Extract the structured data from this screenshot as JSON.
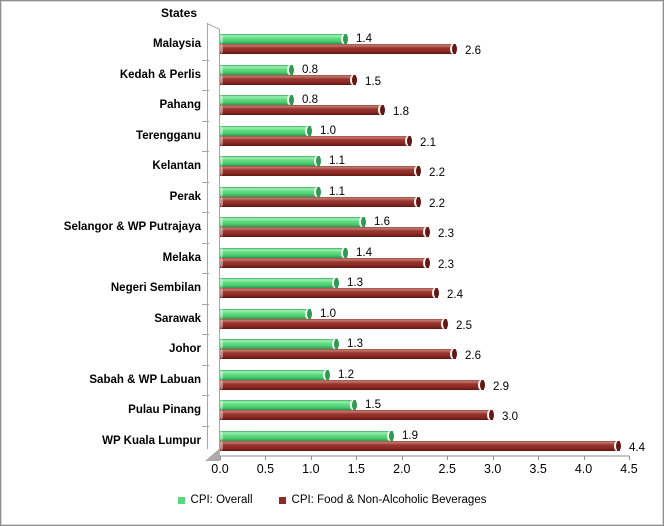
{
  "chart_data": {
    "type": "bar",
    "orientation": "horizontal",
    "title": "States",
    "categories": [
      "Malaysia",
      "Kedah & Perlis",
      "Pahang",
      "Terengganu",
      "Kelantan",
      "Perak",
      "Selangor & WP Putrajaya",
      "Melaka",
      "Negeri Sembilan",
      "Sarawak",
      "Johor",
      "Sabah & WP Labuan",
      "Pulau Pinang",
      "WP Kuala Lumpur"
    ],
    "series": [
      {
        "key": "cpi-overall",
        "name": "CPI: Overall",
        "color": "#5bd77d",
        "values": [
          1.4,
          0.8,
          0.8,
          1.0,
          1.1,
          1.1,
          1.6,
          1.4,
          1.3,
          1.0,
          1.3,
          1.2,
          1.5,
          1.9
        ]
      },
      {
        "key": "cpi-food-non-alcoholic-beverages",
        "name": "CPI: Food & Non-Alcoholic Beverages",
        "color": "#8e2b27",
        "values": [
          2.6,
          1.5,
          1.8,
          2.1,
          2.2,
          2.2,
          2.3,
          2.3,
          2.4,
          2.5,
          2.6,
          2.9,
          3.0,
          4.4
        ]
      }
    ],
    "xlim": [
      0,
      4.5
    ],
    "x_ticks": [
      "0.0",
      "0.5",
      "1.0",
      "1.5",
      "2.0",
      "2.5",
      "3.0",
      "3.5",
      "4.0",
      "4.5"
    ],
    "data_labels": true,
    "label_format": "one-decimal",
    "grid": false,
    "legend_position": "bottom",
    "bar_style": "3d-cylinder"
  }
}
